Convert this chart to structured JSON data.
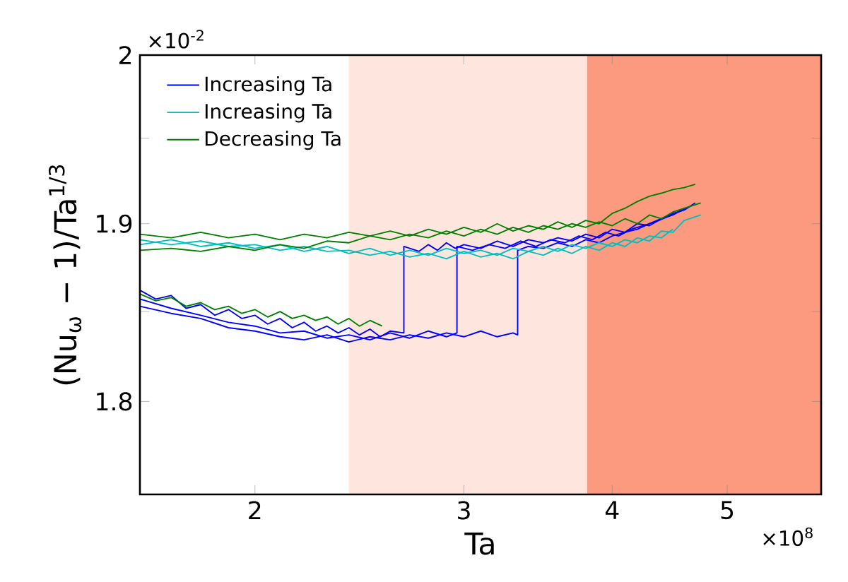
{
  "chart_data": {
    "type": "line",
    "xlabel": "Ta",
    "ylabel": "(Nu$_{ω}$ − 1)/Ta$^{1/3}$",
    "log": "xy",
    "xlim": [
      1.6,
      6.0
    ],
    "ylim": [
      1.75,
      2.0
    ],
    "xticks": [
      2,
      3,
      4,
      5
    ],
    "yticks": [
      1.8,
      {
        "value": 1.85,
        "label": null
      },
      1.9,
      {
        "value": 1.95,
        "label": null
      },
      2
    ],
    "legend": "top left",
    "marker": "none",
    "line_style": "solid",
    "annotations": [
      "×10$^{-2}$",
      "×10$^{8}$"
    ],
    "bands": [
      {
        "axis": "x",
        "from": 2.4,
        "to": 3.81,
        "color": "#fee6de"
      },
      {
        "axis": "x",
        "from": 3.81,
        "to": 6.0,
        "color": "#fc9a7f"
      }
    ],
    "series": [
      {
        "name": "Increasing Ta",
        "color": "#0000ff",
        "x": [
          1.6,
          1.65,
          1.7,
          1.75,
          1.8,
          1.85,
          1.9,
          1.95,
          2.0,
          2.05,
          2.1,
          2.15,
          2.2,
          2.25,
          2.3,
          2.35,
          2.4,
          2.45,
          2.5,
          2.55,
          2.6,
          2.67,
          2.67,
          2.75,
          2.8,
          2.85,
          2.9,
          2.95,
          3.0,
          3.1,
          3.2,
          3.3,
          3.4,
          3.5,
          3.6,
          3.7,
          3.8,
          3.9,
          4.0,
          4.1,
          4.2,
          4.3,
          4.4,
          4.5,
          4.6,
          4.7
        ],
        "values": [
          1.862,
          1.857,
          1.859,
          1.852,
          1.854,
          1.848,
          1.851,
          1.846,
          1.848,
          1.843,
          1.846,
          1.841,
          1.844,
          1.839,
          1.842,
          1.838,
          1.841,
          1.837,
          1.84,
          1.836,
          1.839,
          1.838,
          1.887,
          1.884,
          1.888,
          1.885,
          1.889,
          1.886,
          1.888,
          1.886,
          1.89,
          1.887,
          1.891,
          1.889,
          1.892,
          1.89,
          1.894,
          1.892,
          1.897,
          1.895,
          1.9,
          1.899,
          1.903,
          1.906,
          1.908,
          1.912
        ]
      },
      {
        "color": "#0000ff",
        "x": [
          1.6,
          1.7,
          1.8,
          1.9,
          2.0,
          2.1,
          2.2,
          2.3,
          2.4,
          2.5,
          2.6,
          2.7,
          2.8,
          2.9,
          2.96,
          2.96,
          3.05,
          3.15,
          3.25,
          3.35,
          3.45,
          3.55,
          3.65,
          3.75,
          3.85,
          3.95,
          4.05,
          4.15,
          4.25,
          4.35,
          4.45,
          4.55,
          4.65
        ],
        "values": [
          1.857,
          1.852,
          1.848,
          1.844,
          1.842,
          1.838,
          1.839,
          1.835,
          1.837,
          1.834,
          1.838,
          1.835,
          1.839,
          1.836,
          1.838,
          1.887,
          1.885,
          1.888,
          1.886,
          1.89,
          1.887,
          1.891,
          1.889,
          1.893,
          1.891,
          1.895,
          1.893,
          1.897,
          1.899,
          1.901,
          1.904,
          1.907,
          1.91
        ]
      },
      {
        "color": "#0000ff",
        "x": [
          1.6,
          1.7,
          1.8,
          1.9,
          2.0,
          2.1,
          2.2,
          2.3,
          2.4,
          2.5,
          2.6,
          2.7,
          2.8,
          2.9,
          3.0,
          3.1,
          3.2,
          3.3,
          3.33,
          3.33,
          3.4,
          3.5,
          3.6,
          3.7,
          3.8,
          3.9,
          4.0,
          4.1,
          4.2,
          4.3,
          4.4,
          4.5,
          4.6
        ],
        "values": [
          1.853,
          1.849,
          1.846,
          1.841,
          1.839,
          1.836,
          1.834,
          1.837,
          1.833,
          1.836,
          1.834,
          1.837,
          1.835,
          1.838,
          1.836,
          1.839,
          1.836,
          1.838,
          1.837,
          1.885,
          1.887,
          1.886,
          1.889,
          1.887,
          1.891,
          1.889,
          1.893,
          1.895,
          1.897,
          1.9,
          1.903,
          1.905,
          1.909
        ]
      },
      {
        "name": "Increasing Ta",
        "color": "#00bfbf",
        "x": [
          1.6,
          1.7,
          1.8,
          1.9,
          2.0,
          2.1,
          2.2,
          2.3,
          2.4,
          2.5,
          2.6,
          2.7,
          2.8,
          2.9,
          3.0,
          3.1,
          3.2,
          3.3,
          3.4,
          3.5,
          3.6,
          3.7,
          3.8,
          3.9,
          4.0,
          4.1,
          4.2,
          4.3,
          4.4,
          4.5,
          4.6,
          4.75
        ],
        "values": [
          1.891,
          1.888,
          1.89,
          1.887,
          1.888,
          1.885,
          1.887,
          1.884,
          1.885,
          1.882,
          1.884,
          1.881,
          1.883,
          1.88,
          1.884,
          1.881,
          1.883,
          1.88,
          1.884,
          1.882,
          1.886,
          1.883,
          1.887,
          1.885,
          1.889,
          1.887,
          1.892,
          1.89,
          1.896,
          1.895,
          1.902,
          1.905
        ]
      },
      {
        "color": "#00bfbf",
        "x": [
          1.6,
          1.7,
          1.8,
          1.9,
          2.0,
          2.1,
          2.2,
          2.3,
          2.4,
          2.5,
          2.6,
          2.7,
          2.8,
          2.9,
          3.0,
          3.1,
          3.2,
          3.3,
          3.4,
          3.5,
          3.6,
          3.7,
          3.8,
          3.9,
          4.0,
          4.1,
          4.2,
          4.3,
          4.4,
          4.5
        ],
        "values": [
          1.888,
          1.891,
          1.887,
          1.889,
          1.886,
          1.888,
          1.884,
          1.887,
          1.883,
          1.886,
          1.882,
          1.885,
          1.882,
          1.886,
          1.883,
          1.885,
          1.882,
          1.886,
          1.884,
          1.887,
          1.884,
          1.888,
          1.886,
          1.889,
          1.887,
          1.891,
          1.889,
          1.893,
          1.892,
          1.897
        ]
      },
      {
        "name": "Decreasing Ta",
        "color": "#008000",
        "x": [
          1.6,
          1.7,
          1.8,
          1.9,
          2.0,
          2.1,
          2.2,
          2.3,
          2.4,
          2.5,
          2.6,
          2.7,
          2.8,
          2.9,
          3.0,
          3.1,
          3.2,
          3.3,
          3.4,
          3.5,
          3.6,
          3.7,
          3.8,
          3.9,
          4.0,
          4.1,
          4.2,
          4.3,
          4.4,
          4.5,
          4.6,
          4.7
        ],
        "values": [
          1.894,
          1.892,
          1.895,
          1.892,
          1.894,
          1.891,
          1.894,
          1.892,
          1.895,
          1.893,
          1.896,
          1.893,
          1.897,
          1.894,
          1.898,
          1.895,
          1.9,
          1.896,
          1.899,
          1.897,
          1.901,
          1.898,
          1.902,
          1.9,
          1.906,
          1.909,
          1.913,
          1.916,
          1.918,
          1.92,
          1.921,
          1.923
        ]
      },
      {
        "color": "#008000",
        "x": [
          1.6,
          1.7,
          1.8,
          1.9,
          2.0,
          2.1,
          2.2,
          2.3,
          2.4,
          2.5,
          2.6,
          2.7,
          2.8,
          2.9,
          3.0,
          3.1,
          3.2,
          3.3,
          3.4,
          3.5,
          3.6,
          3.7,
          3.8,
          3.9,
          4.0,
          4.1,
          4.2,
          4.3,
          4.4,
          4.5,
          4.6,
          4.75
        ],
        "values": [
          1.885,
          1.886,
          1.884,
          1.887,
          1.885,
          1.888,
          1.886,
          1.89,
          1.889,
          1.893,
          1.891,
          1.894,
          1.892,
          1.896,
          1.893,
          1.897,
          1.894,
          1.898,
          1.895,
          1.899,
          1.897,
          1.9,
          1.898,
          1.901,
          1.899,
          1.903,
          1.9,
          1.905,
          1.903,
          1.907,
          1.909,
          1.912
        ]
      },
      {
        "color": "#008000",
        "x": [
          1.6,
          1.65,
          1.7,
          1.75,
          1.8,
          1.85,
          1.9,
          1.95,
          2.0,
          2.05,
          2.1,
          2.15,
          2.2,
          2.25,
          2.3,
          2.35,
          2.4,
          2.45,
          2.5,
          2.56
        ],
        "values": [
          1.86,
          1.856,
          1.858,
          1.853,
          1.855,
          1.851,
          1.853,
          1.849,
          1.851,
          1.847,
          1.85,
          1.846,
          1.848,
          1.845,
          1.847,
          1.843,
          1.846,
          1.842,
          1.845,
          1.842
        ]
      }
    ]
  }
}
